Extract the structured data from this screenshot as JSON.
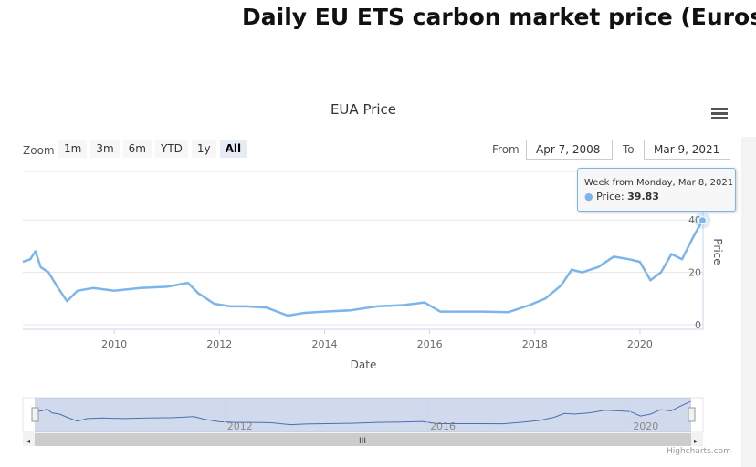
{
  "title": "Daily EU ETS carbon market price (Euros)",
  "chart_data": {
    "type": "line",
    "title": "EUA Price",
    "xlabel": "Date",
    "ylabel": "Price",
    "xlim": [
      2008.26,
      2021.2
    ],
    "ylim": [
      0,
      45
    ],
    "xticks": [
      "2010",
      "2012",
      "2014",
      "2016",
      "2018",
      "2020"
    ],
    "yticks": [
      "0",
      "20",
      "40"
    ],
    "series": [
      {
        "name": "Price",
        "color": "#7cb5ec",
        "x": [
          2008.26,
          2008.4,
          2008.5,
          2008.6,
          2008.75,
          2008.9,
          2009.1,
          2009.3,
          2009.6,
          2010,
          2010.5,
          2011,
          2011.4,
          2011.6,
          2011.9,
          2012.2,
          2012.5,
          2012.9,
          2013.3,
          2013.6,
          2014,
          2014.5,
          2015,
          2015.5,
          2015.9,
          2016.2,
          2016.6,
          2017,
          2017.5,
          2017.9,
          2018.2,
          2018.5,
          2018.7,
          2018.9,
          2019.2,
          2019.5,
          2019.8,
          2020,
          2020.2,
          2020.4,
          2020.6,
          2020.8,
          2021,
          2021.19
        ],
        "y": [
          24,
          25,
          28,
          22,
          20,
          15,
          9,
          13,
          14,
          13,
          14,
          14.5,
          16,
          12,
          8,
          7,
          7,
          6.5,
          3.5,
          4.5,
          5,
          5.5,
          7,
          7.5,
          8.5,
          5,
          5,
          5,
          4.8,
          7.5,
          10,
          15,
          21,
          20,
          22,
          26,
          25,
          24,
          17,
          20,
          27,
          25,
          33,
          39.83
        ]
      }
    ]
  },
  "zoom": {
    "label": "Zoom",
    "buttons": [
      "1m",
      "3m",
      "6m",
      "YTD",
      "1y",
      "All"
    ],
    "selected": "All"
  },
  "range": {
    "from_label": "From",
    "from": "Apr 7, 2008",
    "to_label": "To",
    "to": "Mar 9, 2021"
  },
  "tooltip": {
    "header": "Week from Monday, Mar 8, 2021",
    "series": "Price: ",
    "value": "39.83"
  },
  "navigator": {
    "labels": [
      "2012",
      "2016",
      "2020"
    ]
  },
  "credit": "Highcharts.com"
}
